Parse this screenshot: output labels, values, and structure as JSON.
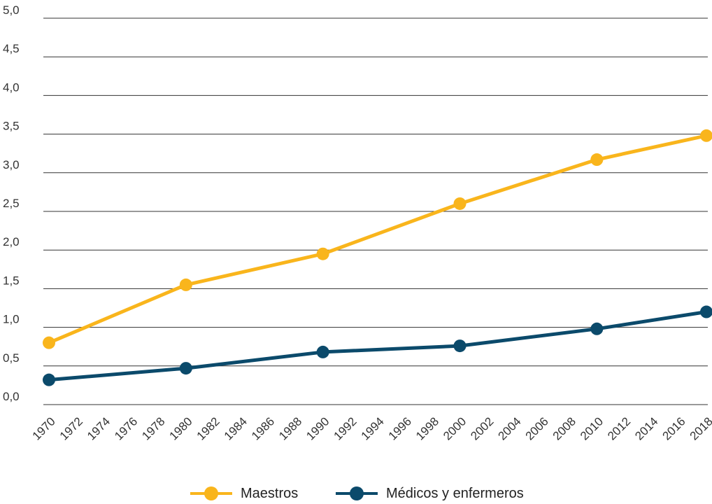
{
  "chart_data": {
    "type": "line",
    "x": [
      1970,
      1980,
      1990,
      2000,
      2010,
      2018
    ],
    "x_tick_labels": [
      "1970",
      "1972",
      "1974",
      "1976",
      "1978",
      "1980",
      "1982",
      "1984",
      "1986",
      "1988",
      "1990",
      "1992",
      "1994",
      "1996",
      "1998",
      "2000",
      "2002",
      "2004",
      "2006",
      "2008",
      "2010",
      "2012",
      "2014",
      "2016",
      "2018"
    ],
    "y_tick_labels": [
      "0,0",
      "0,5",
      "1,0",
      "1,5",
      "2,0",
      "2,5",
      "3,0",
      "3,5",
      "4,0",
      "4,5",
      "5,0"
    ],
    "ylim": [
      0,
      5
    ],
    "xlim": [
      1970,
      2018
    ],
    "grid": "horizontal",
    "legend_position": "bottom-center",
    "series": [
      {
        "name": "Maestros",
        "color": "#F9B51C",
        "values": [
          0.8,
          1.55,
          1.95,
          2.6,
          3.17,
          3.48
        ]
      },
      {
        "name": "Médicos y enfermeros",
        "color": "#0B4A6B",
        "values": [
          0.32,
          0.47,
          0.68,
          0.76,
          0.98,
          1.2
        ]
      }
    ]
  }
}
